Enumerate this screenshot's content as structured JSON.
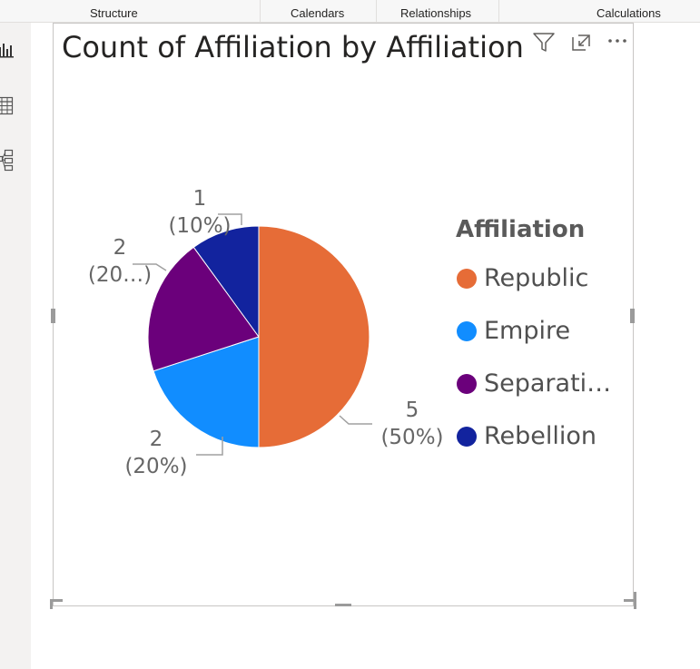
{
  "ribbon": {
    "groups": [
      "Structure",
      "Calendars",
      "Relationships",
      "Calculations"
    ]
  },
  "rail": {
    "items": [
      {
        "icon": "report-view-icon"
      },
      {
        "icon": "table-view-icon"
      },
      {
        "icon": "model-view-icon"
      }
    ]
  },
  "visual": {
    "title": "Count of Affiliation by Affiliation",
    "header_icons": [
      "filter-icon",
      "focus-mode-icon",
      "more-options-icon"
    ]
  },
  "chart_data": {
    "type": "pie",
    "title": "Count of Affiliation by Affiliation",
    "legend_title": "Affiliation",
    "legend_position": "right",
    "slices": [
      {
        "category": "Republic",
        "legend_label": "Republic",
        "value": 5,
        "value_label": "5",
        "pct_label": "(50%)",
        "color": "#E66C37"
      },
      {
        "category": "Empire",
        "legend_label": "Empire",
        "value": 2,
        "value_label": "2",
        "pct_label": "(20%)",
        "color": "#118DFF"
      },
      {
        "category": "Separatist",
        "legend_label": "Separati…",
        "value": 2,
        "value_label": "2",
        "pct_label": "(20…)",
        "color": "#6B007B"
      },
      {
        "category": "Rebellion",
        "legend_label": "Rebellion",
        "value": 1,
        "value_label": "1",
        "pct_label": "(10%)",
        "color": "#12239E"
      }
    ]
  }
}
